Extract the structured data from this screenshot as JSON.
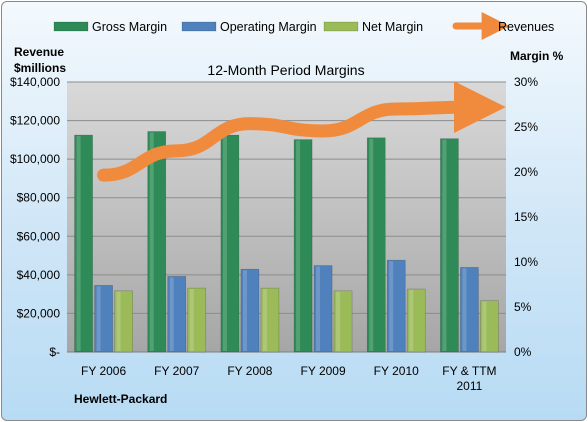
{
  "chart_data": {
    "type": "bar",
    "title": "12-Month Period Margins",
    "left_axis_label": [
      "Revenue",
      "$millions"
    ],
    "right_axis_label": "Margin %",
    "company": "Hewlett-Packard",
    "categories": [
      [
        "FY 2006"
      ],
      [
        "FY 2007"
      ],
      [
        "FY 2008"
      ],
      [
        "FY 2009"
      ],
      [
        "FY 2010"
      ],
      [
        "FY & TTM",
        "2011"
      ]
    ],
    "y_left_range": [
      0,
      140000
    ],
    "y_left_ticks": [
      "$-",
      "$20,000",
      "$40,000",
      "$60,000",
      "$80,000",
      "$100,000",
      "$120,000",
      "$140,000"
    ],
    "y_right_range": [
      0,
      30
    ],
    "y_right_ticks": [
      "0%",
      "5%",
      "10%",
      "15%",
      "20%",
      "25%",
      "30%"
    ],
    "grid": true,
    "legend_position": "top",
    "series": [
      {
        "name": "Gross Margin",
        "axis": "right",
        "color": "#2e8b57",
        "values": [
          24.1,
          24.5,
          24.1,
          23.6,
          23.8,
          23.7
        ]
      },
      {
        "name": "Operating Margin",
        "axis": "right",
        "color": "#4f81bd",
        "values": [
          7.4,
          8.4,
          9.2,
          9.6,
          10.2,
          9.4
        ]
      },
      {
        "name": "Net Margin",
        "axis": "right",
        "color": "#9bbb59",
        "values": [
          6.8,
          7.1,
          7.1,
          6.8,
          7.0,
          5.7
        ]
      },
      {
        "name": "Revenues",
        "axis": "left",
        "type": "line",
        "color": "#f08a3c",
        "values": [
          91700,
          104300,
          118400,
          114600,
          126000,
          127000
        ]
      }
    ]
  }
}
